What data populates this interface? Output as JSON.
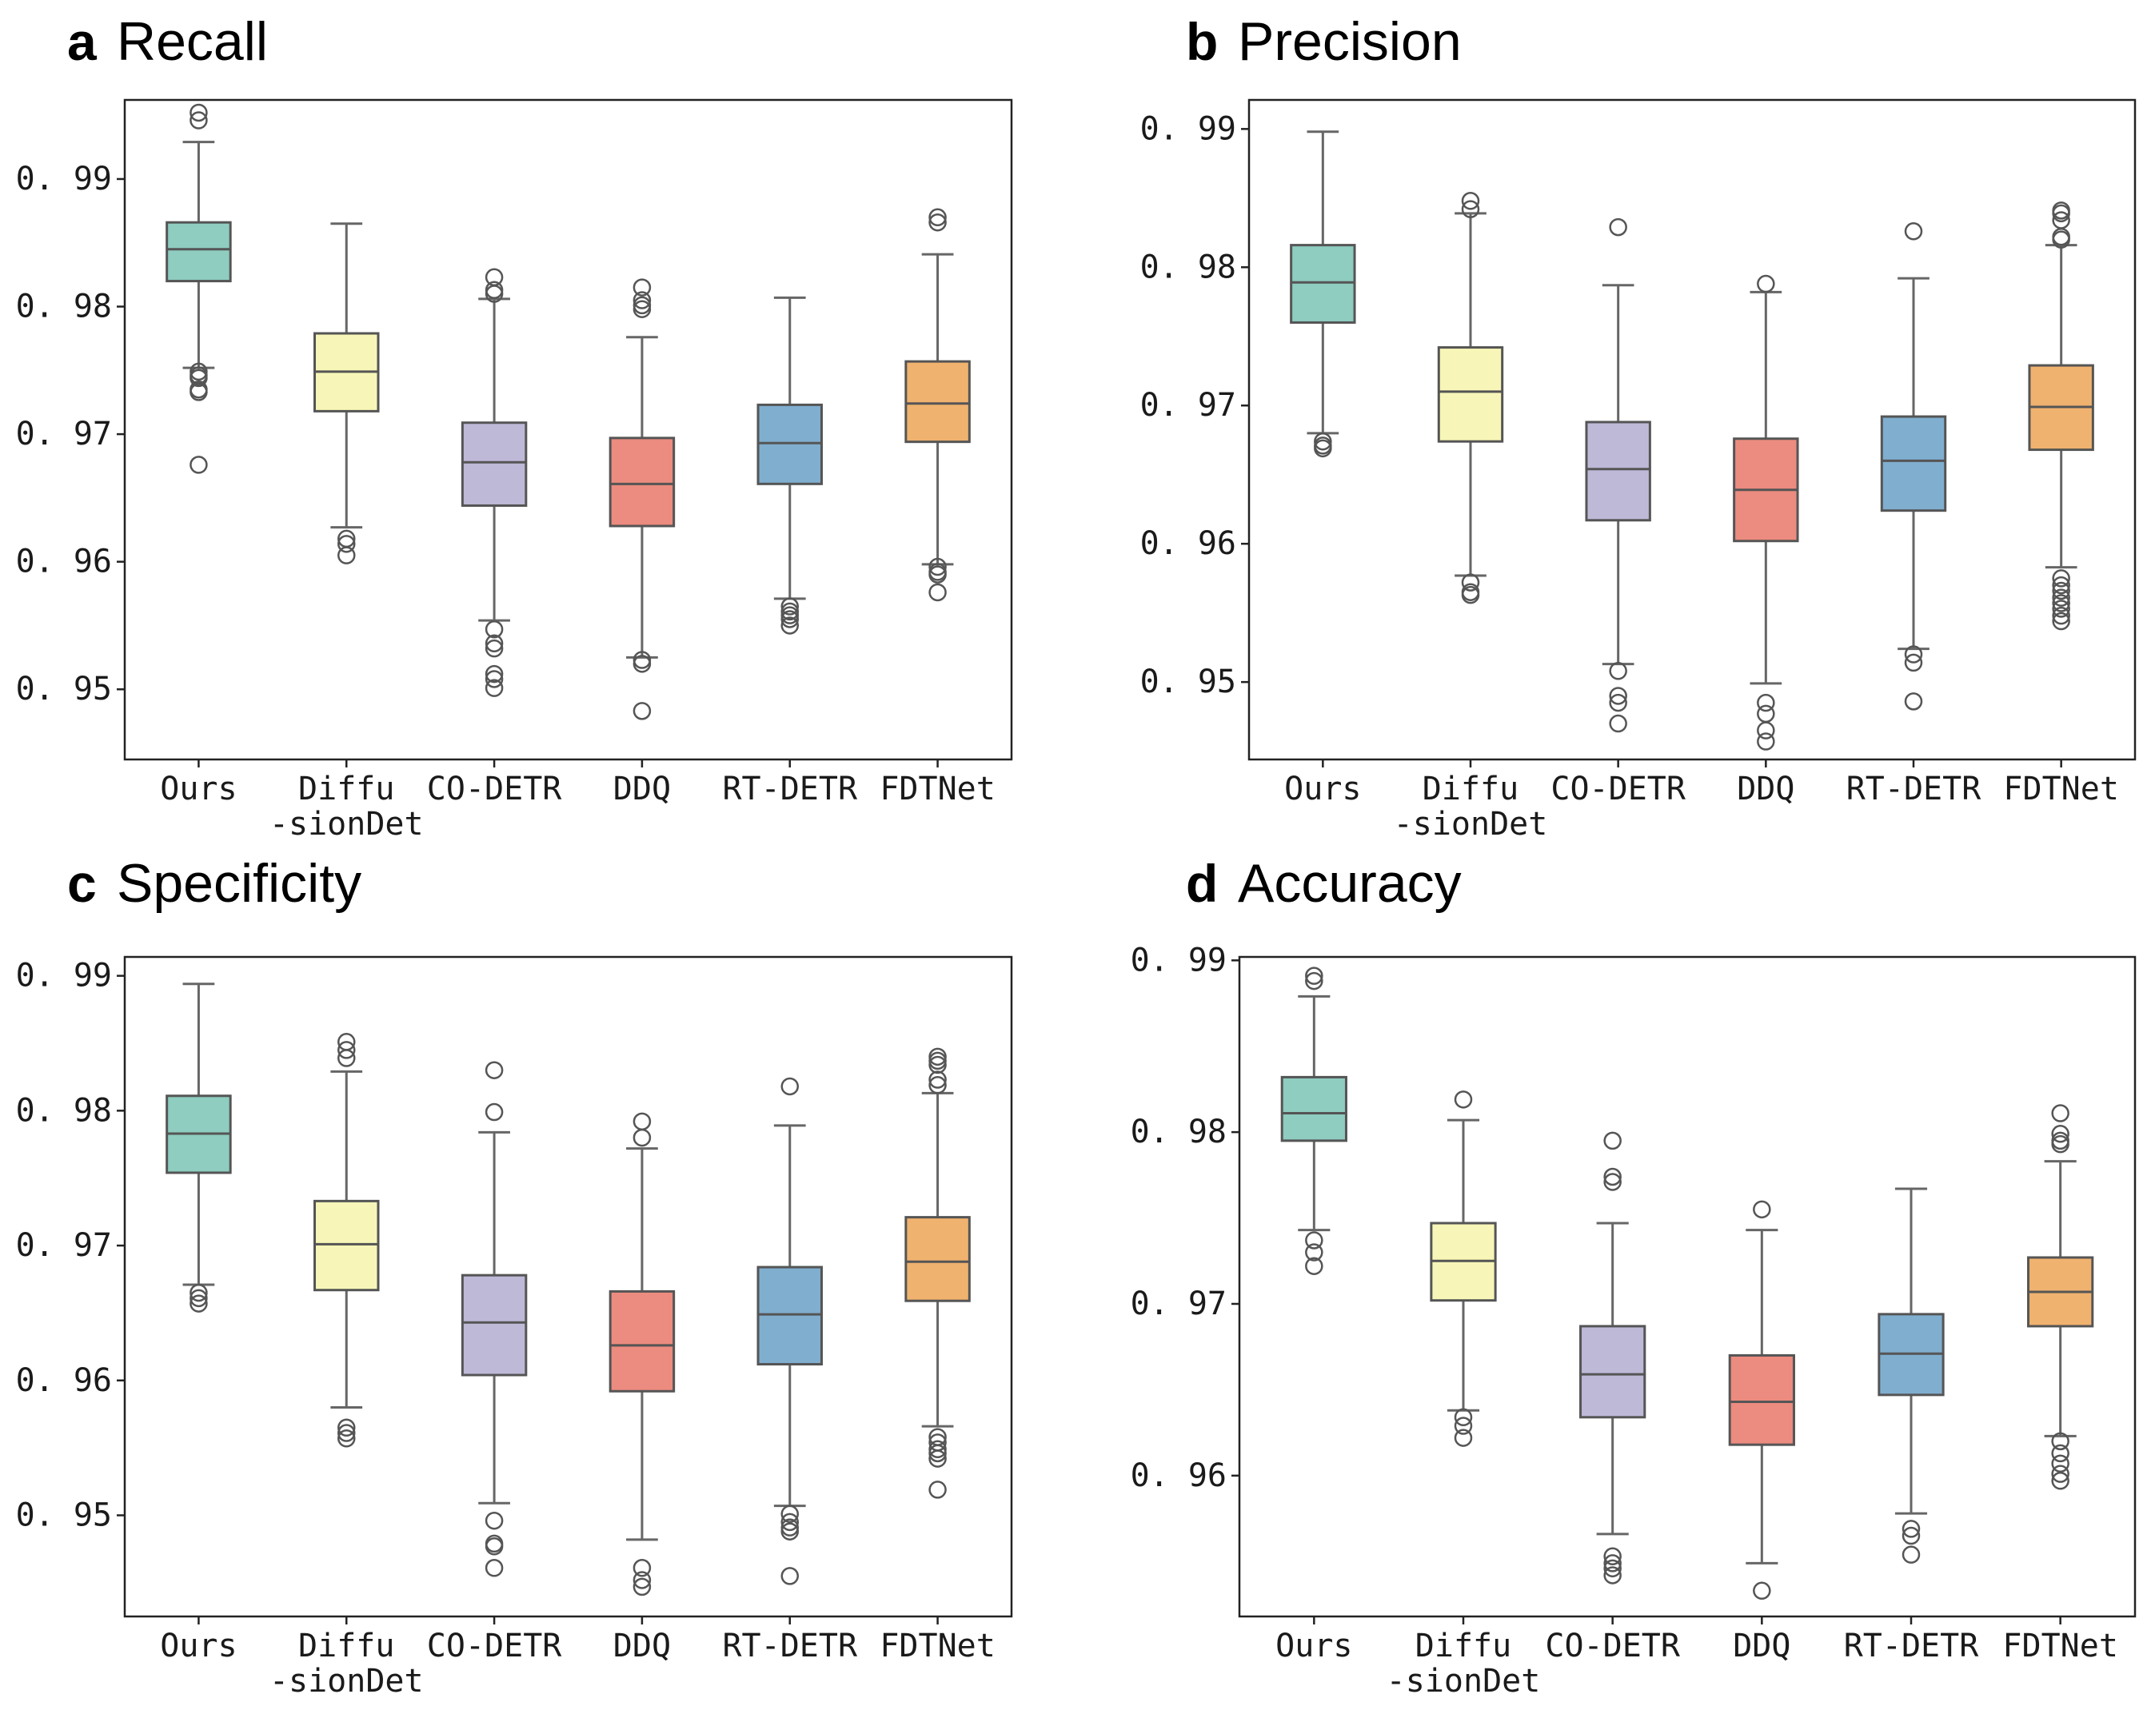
{
  "chart_data": [
    {
      "type": "box",
      "panel": "a",
      "title": "Recall",
      "ylim": [
        0.9445,
        0.9962
      ],
      "yticks": [
        0.95,
        0.96,
        0.97,
        0.98,
        0.99
      ],
      "ytick_labels": [
        "0. 95",
        "0. 96",
        "0. 97",
        "0. 98",
        "0. 99"
      ],
      "categories": [
        "Ours",
        "Diffu\n-sionDet",
        "CO-DETR",
        "DDQ",
        "RT-DETR",
        "FDTNet"
      ],
      "boxes": [
        {
          "q1": 0.982,
          "median": 0.9845,
          "q3": 0.9866,
          "whislo": 0.9752,
          "whishi": 0.9929,
          "fliers": [
            0.9952,
            0.9946,
            0.9749,
            0.9746,
            0.9744,
            0.9735,
            0.9733,
            0.9676
          ]
        },
        {
          "q1": 0.9718,
          "median": 0.9749,
          "q3": 0.9779,
          "whislo": 0.9627,
          "whishi": 0.9865,
          "fliers": [
            0.9618,
            0.9614,
            0.9605
          ]
        },
        {
          "q1": 0.9644,
          "median": 0.9678,
          "q3": 0.9709,
          "whislo": 0.9554,
          "whishi": 0.9806,
          "fliers": [
            0.9823,
            0.9813,
            0.981,
            0.9547,
            0.9536,
            0.9532,
            0.9512,
            0.9508,
            0.9501
          ]
        },
        {
          "q1": 0.9628,
          "median": 0.9661,
          "q3": 0.9697,
          "whislo": 0.9525,
          "whishi": 0.9776,
          "fliers": [
            0.9815,
            0.9805,
            0.9801,
            0.9798,
            0.9523,
            0.952,
            0.9483
          ]
        },
        {
          "q1": 0.9661,
          "median": 0.9693,
          "q3": 0.9723,
          "whislo": 0.9571,
          "whishi": 0.9807,
          "fliers": [
            0.9565,
            0.9561,
            0.9558,
            0.9555,
            0.955
          ]
        },
        {
          "q1": 0.9694,
          "median": 0.9724,
          "q3": 0.9757,
          "whislo": 0.9598,
          "whishi": 0.9841,
          "fliers": [
            0.987,
            0.9866,
            0.9596,
            0.9592,
            0.959,
            0.9576
          ]
        }
      ]
    },
    {
      "type": "box",
      "panel": "b",
      "title": "Precision",
      "ylim": [
        0.9444,
        0.9921
      ],
      "yticks": [
        0.95,
        0.96,
        0.97,
        0.98,
        0.99
      ],
      "ytick_labels": [
        "0. 95",
        "0. 96",
        "0. 97",
        "0. 98",
        "0. 99"
      ],
      "categories": [
        "Ours",
        "Diffu\n-sionDet",
        "CO-DETR",
        "DDQ",
        "RT-DETR",
        "FDTNet"
      ],
      "boxes": [
        {
          "q1": 0.976,
          "median": 0.9789,
          "q3": 0.9816,
          "whislo": 0.968,
          "whishi": 0.9898,
          "fliers": [
            0.9674,
            0.9671,
            0.9669
          ]
        },
        {
          "q1": 0.9674,
          "median": 0.971,
          "q3": 0.9742,
          "whislo": 0.9577,
          "whishi": 0.9839,
          "fliers": [
            0.9848,
            0.9842,
            0.9572,
            0.9565,
            0.9563
          ]
        },
        {
          "q1": 0.9617,
          "median": 0.9654,
          "q3": 0.9688,
          "whislo": 0.9513,
          "whishi": 0.9787,
          "fliers": [
            0.9829,
            0.9508,
            0.949,
            0.9485,
            0.947
          ]
        },
        {
          "q1": 0.9602,
          "median": 0.9639,
          "q3": 0.9676,
          "whislo": 0.9499,
          "whishi": 0.9782,
          "fliers": [
            0.9788,
            0.9485,
            0.9477,
            0.9465,
            0.9457
          ]
        },
        {
          "q1": 0.9624,
          "median": 0.966,
          "q3": 0.9692,
          "whislo": 0.9524,
          "whishi": 0.9792,
          "fliers": [
            0.9826,
            0.952,
            0.9514,
            0.9486
          ]
        },
        {
          "q1": 0.9668,
          "median": 0.9699,
          "q3": 0.9729,
          "whislo": 0.9583,
          "whishi": 0.9816,
          "fliers": [
            0.9841,
            0.9839,
            0.9834,
            0.9822,
            0.982,
            0.9575,
            0.957,
            0.9566,
            0.9561,
            0.9557,
            0.9553,
            0.9548,
            0.9544
          ]
        }
      ]
    },
    {
      "type": "box",
      "panel": "c",
      "title": "Specificity",
      "ylim": [
        0.9425,
        0.9914
      ],
      "yticks": [
        0.95,
        0.96,
        0.97,
        0.98,
        0.99
      ],
      "ytick_labels": [
        "0. 95",
        "0. 96",
        "0. 97",
        "0. 98",
        "0. 99"
      ],
      "categories": [
        "Ours",
        "Diffu\n-sionDet",
        "CO-DETR",
        "DDQ",
        "RT-DETR",
        "FDTNet"
      ],
      "boxes": [
        {
          "q1": 0.9754,
          "median": 0.9783,
          "q3": 0.9811,
          "whislo": 0.9671,
          "whishi": 0.9894,
          "fliers": [
            0.9665,
            0.9661,
            0.9657
          ]
        },
        {
          "q1": 0.9667,
          "median": 0.9701,
          "q3": 0.9733,
          "whislo": 0.958,
          "whishi": 0.9829,
          "fliers": [
            0.9851,
            0.9845,
            0.9839,
            0.9565,
            0.9561,
            0.9557
          ]
        },
        {
          "q1": 0.9604,
          "median": 0.9643,
          "q3": 0.9678,
          "whislo": 0.9509,
          "whishi": 0.9784,
          "fliers": [
            0.983,
            0.9799,
            0.9496,
            0.9479,
            0.9477,
            0.9461
          ]
        },
        {
          "q1": 0.9592,
          "median": 0.9626,
          "q3": 0.9666,
          "whislo": 0.9482,
          "whishi": 0.9772,
          "fliers": [
            0.9792,
            0.978,
            0.9461,
            0.9452,
            0.9447
          ]
        },
        {
          "q1": 0.9612,
          "median": 0.9649,
          "q3": 0.9684,
          "whislo": 0.9507,
          "whishi": 0.9789,
          "fliers": [
            0.9818,
            0.9501,
            0.9495,
            0.9491,
            0.9488,
            0.9455
          ]
        },
        {
          "q1": 0.9659,
          "median": 0.9688,
          "q3": 0.9721,
          "whislo": 0.9566,
          "whishi": 0.9813,
          "fliers": [
            0.984,
            0.9837,
            0.9834,
            0.9823,
            0.9819,
            0.9558,
            0.9554,
            0.9549,
            0.9546,
            0.9542,
            0.9519
          ]
        }
      ]
    },
    {
      "type": "box",
      "panel": "d",
      "title": "Accuracy",
      "ylim": [
        0.9518,
        0.9902
      ],
      "yticks": [
        0.96,
        0.97,
        0.98,
        0.99
      ],
      "ytick_labels": [
        "0. 96",
        "0. 97",
        "0. 98",
        "0. 99"
      ],
      "categories": [
        "Ours",
        "Diffu\n-sionDet",
        "CO-DETR",
        "DDQ",
        "RT-DETR",
        "FDTNet"
      ],
      "boxes": [
        {
          "q1": 0.9795,
          "median": 0.9811,
          "q3": 0.9832,
          "whislo": 0.9743,
          "whishi": 0.9879,
          "fliers": [
            0.9891,
            0.9888,
            0.9737,
            0.973,
            0.9722
          ]
        },
        {
          "q1": 0.9702,
          "median": 0.9725,
          "q3": 0.9747,
          "whislo": 0.9638,
          "whishi": 0.9807,
          "fliers": [
            0.9819,
            0.9634,
            0.9629,
            0.9622
          ]
        },
        {
          "q1": 0.9634,
          "median": 0.9659,
          "q3": 0.9687,
          "whislo": 0.9566,
          "whishi": 0.9747,
          "fliers": [
            0.9795,
            0.9774,
            0.9771,
            0.9553,
            0.9549,
            0.9546,
            0.9542
          ]
        },
        {
          "q1": 0.9618,
          "median": 0.9643,
          "q3": 0.967,
          "whislo": 0.9549,
          "whishi": 0.9743,
          "fliers": [
            0.9755,
            0.9533
          ]
        },
        {
          "q1": 0.9647,
          "median": 0.9671,
          "q3": 0.9694,
          "whislo": 0.9578,
          "whishi": 0.9767,
          "fliers": [
            0.9569,
            0.9565,
            0.9554
          ]
        },
        {
          "q1": 0.9687,
          "median": 0.9707,
          "q3": 0.9727,
          "whislo": 0.9623,
          "whishi": 0.9783,
          "fliers": [
            0.9811,
            0.9799,
            0.9795,
            0.9793,
            0.962,
            0.9613,
            0.9607,
            0.9601,
            0.9597
          ]
        }
      ]
    }
  ],
  "colors": [
    "#8ecdc0",
    "#f7f6b8",
    "#bfb9d8",
    "#ec8b7f",
    "#80aecf",
    "#f0b26f"
  ]
}
